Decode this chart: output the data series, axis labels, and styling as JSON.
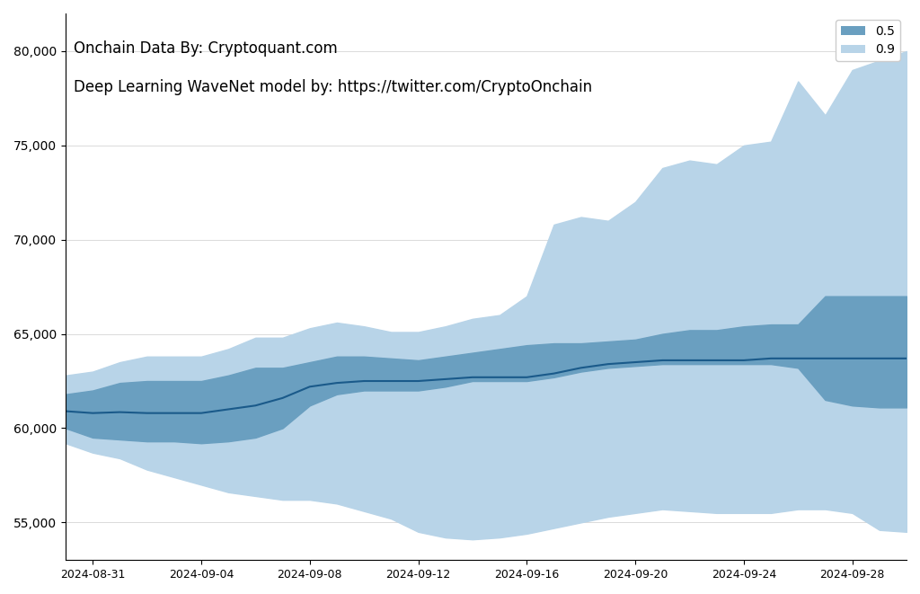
{
  "annotation_line1": "Onchain Data By: Cryptoquant.com",
  "annotation_line2": "Deep Learning WaveNet model by: https://twitter.com/CryptoOnchain",
  "legend_labels": [
    "0.5",
    "0.9"
  ],
  "color_band_05": "#6a9fc0",
  "color_band_09": "#b8d4e8",
  "color_line": "#1a5a8a",
  "background_color": "#ffffff",
  "ylim": [
    53000,
    82000
  ],
  "yticks": [
    55000,
    60000,
    65000,
    70000,
    75000,
    80000
  ],
  "xlabel": "",
  "ylabel": "",
  "dates": [
    "2024-08-30",
    "2024-08-31",
    "2024-09-01",
    "2024-09-02",
    "2024-09-03",
    "2024-09-04",
    "2024-09-05",
    "2024-09-06",
    "2024-09-07",
    "2024-09-08",
    "2024-09-09",
    "2024-09-10",
    "2024-09-11",
    "2024-09-12",
    "2024-09-13",
    "2024-09-14",
    "2024-09-15",
    "2024-09-16",
    "2024-09-17",
    "2024-09-18",
    "2024-09-19",
    "2024-09-20",
    "2024-09-21",
    "2024-09-22",
    "2024-09-23",
    "2024-09-24",
    "2024-09-25",
    "2024-09-26",
    "2024-09-27",
    "2024-09-28",
    "2024-09-29",
    "2024-09-30"
  ],
  "median": [
    60900,
    60800,
    60850,
    60800,
    60800,
    60800,
    61000,
    61200,
    61600,
    62200,
    62400,
    62500,
    62500,
    62500,
    62600,
    62700,
    62700,
    62700,
    62900,
    63200,
    63400,
    63500,
    63600,
    63600,
    63600,
    63600,
    63700,
    63700,
    63700,
    63700,
    63700,
    63700
  ],
  "band_05_lower": [
    60000,
    59500,
    59400,
    59300,
    59300,
    59200,
    59300,
    59500,
    60000,
    61200,
    61800,
    62000,
    62000,
    62000,
    62200,
    62500,
    62500,
    62500,
    62700,
    63000,
    63200,
    63300,
    63400,
    63400,
    63400,
    63400,
    63400,
    63200,
    61500,
    61200,
    61100,
    61100
  ],
  "band_05_upper": [
    61800,
    62000,
    62400,
    62500,
    62500,
    62500,
    62800,
    63200,
    63200,
    63500,
    63800,
    63800,
    63700,
    63600,
    63800,
    64000,
    64200,
    64400,
    64500,
    64500,
    64600,
    64700,
    65000,
    65200,
    65200,
    65400,
    65500,
    65500,
    67000,
    67000,
    67000,
    67000
  ],
  "band_09_lower": [
    59200,
    58700,
    58400,
    57800,
    57400,
    57000,
    56600,
    56400,
    56200,
    56200,
    56000,
    55600,
    55200,
    54500,
    54200,
    54100,
    54200,
    54400,
    54700,
    55000,
    55300,
    55500,
    55700,
    55600,
    55500,
    55500,
    55500,
    55700,
    55700,
    55500,
    54600,
    54500
  ],
  "band_09_upper": [
    62800,
    63000,
    63500,
    63800,
    63800,
    63800,
    64200,
    64800,
    64800,
    65300,
    65600,
    65400,
    65100,
    65100,
    65400,
    65800,
    66000,
    67000,
    70800,
    71200,
    71000,
    72000,
    73800,
    74200,
    74000,
    75000,
    75200,
    78400,
    76600,
    79000,
    79500,
    80000
  ]
}
